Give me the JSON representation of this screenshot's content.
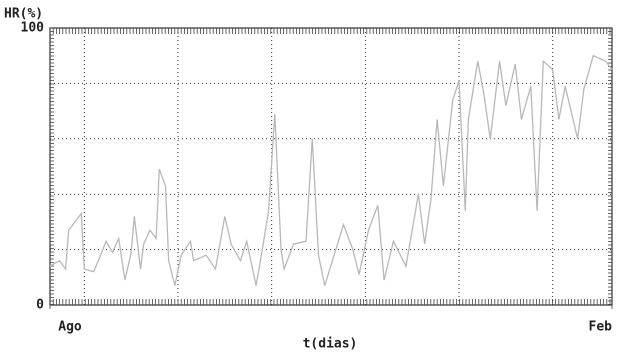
{
  "chart_data": {
    "type": "line",
    "y_label": "HR(%)",
    "x_label": "t(dias)",
    "series": [
      {
        "color": "#b8b8b8",
        "x": [
          0,
          3,
          5,
          6,
          10,
          11,
          14,
          18,
          20,
          22,
          24,
          26,
          27,
          29,
          30,
          32,
          34,
          35,
          37,
          38,
          40,
          42,
          45,
          46,
          50,
          53,
          56,
          58,
          61,
          63,
          66,
          68,
          70,
          72,
          74,
          75,
          78,
          82,
          84,
          86,
          88,
          91,
          94,
          97,
          99,
          102,
          105,
          107,
          110,
          114,
          116,
          118,
          120,
          122,
          124,
          126,
          129,
          131,
          133,
          134,
          137,
          139,
          141,
          144,
          146,
          149,
          151,
          154,
          156,
          158,
          161,
          163,
          165,
          169,
          171,
          174,
          178,
          180
        ],
        "values": [
          14,
          16,
          13,
          27,
          33,
          13,
          12,
          23,
          19,
          24,
          9,
          19,
          32,
          13,
          22,
          27,
          24,
          49,
          43,
          16,
          7,
          18,
          23,
          16,
          18,
          13,
          32,
          22,
          16,
          23,
          7,
          20,
          34,
          69,
          20,
          13,
          22,
          23,
          60,
          18,
          7,
          18,
          29,
          20,
          11,
          27,
          36,
          9,
          23,
          14,
          27,
          40,
          22,
          38,
          67,
          43,
          74,
          81,
          34,
          67,
          88,
          76,
          60,
          88,
          72,
          87,
          67,
          79,
          34,
          88,
          85,
          67,
          79,
          60,
          78,
          90,
          88,
          85
        ]
      }
    ],
    "xlim": [
      0,
      180
    ],
    "xticks": [
      {
        "value": 0,
        "label": "Ago"
      },
      {
        "value": 180,
        "label": "Feb"
      }
    ],
    "xgrid": [
      11,
      41,
      71,
      101,
      131,
      161
    ],
    "ylim": [
      0,
      100
    ],
    "yticks": [
      0,
      100
    ],
    "ygrid": [
      20,
      40,
      60,
      80
    ],
    "grid": true
  }
}
